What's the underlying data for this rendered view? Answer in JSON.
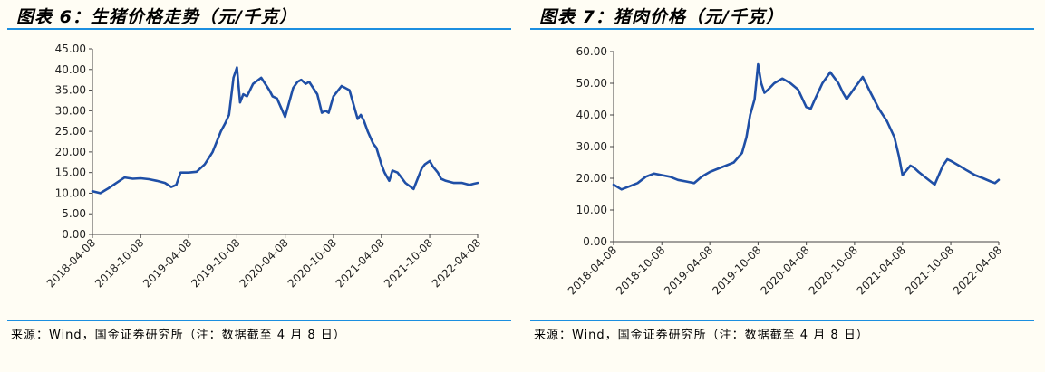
{
  "charts": [
    {
      "title": "图表 6：生猪价格走势（元/千克）",
      "source": "来源：Wind，国金证券研究所（注：数据截至 4 月 8 日）"
    },
    {
      "title": "图表 7：猪肉价格（元/千克）",
      "source": "来源：Wind，国金证券研究所（注：数据截至 4 月 8 日）"
    }
  ],
  "chart_data": [
    {
      "type": "line",
      "title": "图表 6：生猪价格走势（元/千克）",
      "xlabel": "",
      "ylabel": "",
      "ylim": [
        0,
        45
      ],
      "yticks": [
        "0.00",
        "5.00",
        "10.00",
        "15.00",
        "20.00",
        "25.00",
        "30.00",
        "35.00",
        "40.00",
        "45.00"
      ],
      "xlim": [
        "2018-04-08",
        "2022-04-08"
      ],
      "xticks": [
        "2018-04-08",
        "2018-10-08",
        "2019-04-08",
        "2019-10-08",
        "2020-04-08",
        "2020-10-08",
        "2021-04-08",
        "2021-10-08",
        "2022-04-08"
      ],
      "grid": false,
      "legend": "none",
      "color": "#1f4fa6",
      "series": [
        {
          "x": [
            "2018-04-08",
            "2018-05-08",
            "2018-06-08",
            "2018-07-08",
            "2018-08-08",
            "2018-09-08",
            "2018-10-08",
            "2018-11-08",
            "2018-12-08",
            "2019-01-08",
            "2019-02-01",
            "2019-02-20",
            "2019-03-08",
            "2019-04-08",
            "2019-05-08",
            "2019-06-08",
            "2019-07-08",
            "2019-08-08",
            "2019-08-25",
            "2019-09-08",
            "2019-09-25",
            "2019-10-08",
            "2019-10-20",
            "2019-11-01",
            "2019-11-15",
            "2019-12-08",
            "2020-01-08",
            "2020-02-08",
            "2020-02-20",
            "2020-03-08",
            "2020-04-08",
            "2020-05-08",
            "2020-05-25",
            "2020-06-08",
            "2020-06-25",
            "2020-07-08",
            "2020-08-08",
            "2020-08-25",
            "2020-09-08",
            "2020-09-20",
            "2020-10-08",
            "2020-11-08",
            "2020-12-08",
            "2021-01-08",
            "2021-01-20",
            "2021-02-01",
            "2021-02-15",
            "2021-03-08",
            "2021-03-20",
            "2021-04-08",
            "2021-04-20",
            "2021-05-08",
            "2021-05-20",
            "2021-06-08",
            "2021-06-20",
            "2021-07-08",
            "2021-08-08",
            "2021-09-08",
            "2021-09-20",
            "2021-10-08",
            "2021-10-20",
            "2021-11-08",
            "2021-11-20",
            "2021-12-08",
            "2022-01-08",
            "2022-02-08",
            "2022-03-08",
            "2022-03-25",
            "2022-04-08"
          ],
          "values": [
            10.5,
            10.0,
            11.2,
            12.5,
            13.8,
            13.5,
            13.6,
            13.4,
            13.0,
            12.5,
            11.5,
            12.0,
            15.0,
            15.0,
            15.2,
            17.0,
            20.0,
            25.0,
            27.0,
            29.0,
            38.0,
            40.5,
            32.0,
            34.0,
            33.5,
            36.5,
            38.0,
            35.0,
            33.5,
            33.0,
            28.5,
            35.5,
            37.0,
            37.5,
            36.5,
            37.0,
            34.0,
            29.5,
            30.0,
            29.5,
            33.5,
            36.0,
            35.0,
            28.0,
            29.0,
            27.5,
            25.0,
            22.0,
            21.0,
            17.0,
            15.0,
            13.0,
            15.5,
            15.0,
            14.0,
            12.5,
            11.0,
            16.0,
            17.0,
            17.8,
            16.5,
            15.0,
            13.5,
            13.0,
            12.5,
            12.5,
            12.0,
            12.3,
            12.5
          ]
        }
      ]
    },
    {
      "type": "line",
      "title": "图表 7：猪肉价格（元/千克）",
      "xlabel": "",
      "ylabel": "",
      "ylim": [
        0,
        60
      ],
      "yticks": [
        "0.00",
        "10.00",
        "20.00",
        "30.00",
        "40.00",
        "50.00",
        "60.00"
      ],
      "xlim": [
        "2018-04-08",
        "2022-04-08"
      ],
      "xticks": [
        "2018-04-08",
        "2018-10-08",
        "2019-04-08",
        "2019-10-08",
        "2020-04-08",
        "2020-10-08",
        "2021-04-08",
        "2021-10-08",
        "2022-04-08"
      ],
      "grid": false,
      "legend": "none",
      "color": "#1f4fa6",
      "series": [
        {
          "x": [
            "2018-04-08",
            "2018-05-08",
            "2018-06-08",
            "2018-07-08",
            "2018-08-08",
            "2018-09-08",
            "2018-10-08",
            "2018-11-08",
            "2018-12-08",
            "2019-01-08",
            "2019-02-08",
            "2019-03-08",
            "2019-04-08",
            "2019-05-08",
            "2019-06-08",
            "2019-07-08",
            "2019-08-08",
            "2019-08-25",
            "2019-09-08",
            "2019-09-25",
            "2019-10-08",
            "2019-10-20",
            "2019-11-01",
            "2019-11-15",
            "2019-12-08",
            "2020-01-08",
            "2020-02-08",
            "2020-03-08",
            "2020-04-08",
            "2020-04-25",
            "2020-05-08",
            "2020-06-08",
            "2020-07-08",
            "2020-08-08",
            "2020-08-25",
            "2020-09-08",
            "2020-10-08",
            "2020-11-08",
            "2020-12-08",
            "2021-01-08",
            "2021-02-08",
            "2021-03-08",
            "2021-03-25",
            "2021-04-08",
            "2021-05-08",
            "2021-05-20",
            "2021-06-08",
            "2021-07-08",
            "2021-08-08",
            "2021-09-08",
            "2021-09-25",
            "2021-10-08",
            "2021-11-08",
            "2021-12-08",
            "2022-01-08",
            "2022-02-08",
            "2022-03-08",
            "2022-03-25",
            "2022-04-08"
          ],
          "values": [
            18.0,
            16.5,
            17.5,
            18.5,
            20.5,
            21.5,
            21.0,
            20.5,
            19.5,
            19.0,
            18.5,
            20.5,
            22.0,
            23.0,
            24.0,
            25.0,
            28.0,
            33.0,
            40.0,
            45.0,
            56.0,
            50.0,
            47.0,
            48.0,
            50.0,
            51.5,
            50.0,
            48.0,
            42.5,
            42.0,
            44.5,
            50.0,
            53.5,
            50.0,
            47.0,
            45.0,
            48.5,
            52.0,
            47.0,
            42.0,
            38.0,
            33.0,
            27.0,
            21.0,
            24.0,
            23.5,
            22.0,
            20.0,
            18.0,
            24.0,
            26.0,
            25.5,
            24.0,
            22.5,
            21.0,
            20.0,
            19.0,
            18.5,
            19.5
          ]
        }
      ]
    }
  ]
}
